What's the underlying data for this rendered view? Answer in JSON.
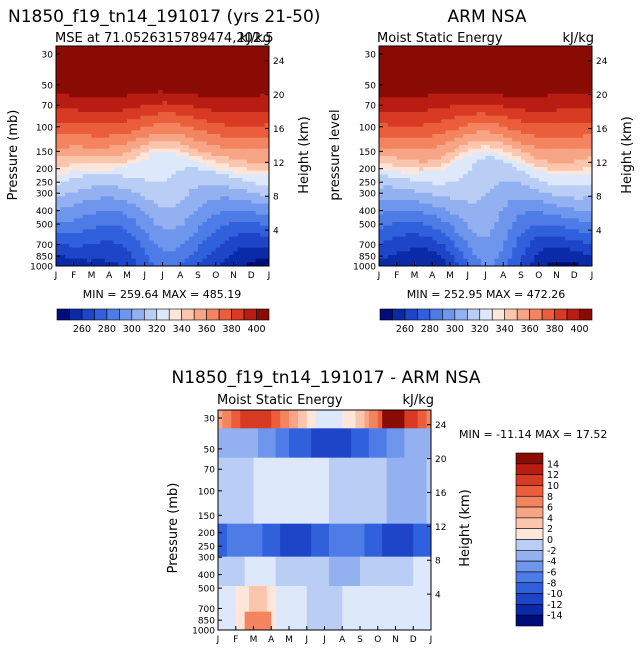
{
  "palette": [
    "#000c7a",
    "#0a2aa8",
    "#1e44c8",
    "#3060dc",
    "#4d7ce6",
    "#6e96ec",
    "#93b0f0",
    "#b9cdf5",
    "#dde8fa",
    "#ffe6da",
    "#fcc5ad",
    "#f8a585",
    "#f3845f",
    "#ea5e3c",
    "#d83a24",
    "#b81c12",
    "#8a0a04"
  ],
  "chart_data": [
    {
      "id": "top-left",
      "type": "heatmap",
      "title": "N1850_f19_tn14_191017 (yrs 21-50)",
      "subtitle_left": "MSE at 71.0526315789474,202.5",
      "subtitle_right": "kJ/kg",
      "ylabel": "Pressure (mb)",
      "ylabel_right": "Height (km)",
      "months": [
        "J",
        "F",
        "M",
        "A",
        "M",
        "J",
        "J",
        "A",
        "S",
        "O",
        "N",
        "D",
        "J"
      ],
      "pressure_ticks": [
        30,
        50,
        70,
        100,
        150,
        200,
        250,
        300,
        400,
        500,
        700,
        850,
        1000
      ],
      "height_ticks": [
        4,
        8,
        12,
        16,
        20,
        24
      ],
      "stats": "MIN = 259.64  MAX = 485.19",
      "min": 259.64,
      "max": 485.19
    },
    {
      "id": "top-right",
      "type": "heatmap",
      "title": "ARM NSA",
      "subtitle_left": "Moist Static Energy",
      "subtitle_right": "kJ/kg",
      "ylabel": "pressure level",
      "ylabel_right": "Height (km)",
      "months": [
        "J",
        "F",
        "M",
        "A",
        "M",
        "J",
        "J",
        "A",
        "S",
        "O",
        "N",
        "D",
        "J"
      ],
      "pressure_ticks": [
        30,
        50,
        70,
        100,
        150,
        200,
        250,
        300,
        400,
        500,
        700,
        850,
        1000
      ],
      "height_ticks": [
        4,
        8,
        12,
        16,
        20,
        24
      ],
      "stats": "MIN = 252.95  MAX = 472.26",
      "min": 252.95,
      "max": 472.26
    },
    {
      "id": "bottom-diff",
      "type": "heatmap",
      "title": "N1850_f19_tn14_191017 - ARM NSA",
      "subtitle_left": "Moist Static Energy",
      "subtitle_right": "kJ/kg",
      "ylabel": "Pressure (mb)",
      "ylabel_right": "Height (km)",
      "months": [
        "J",
        "F",
        "M",
        "A",
        "M",
        "J",
        "J",
        "A",
        "S",
        "O",
        "N",
        "D",
        "J"
      ],
      "pressure_ticks": [
        30,
        50,
        70,
        100,
        150,
        200,
        250,
        300,
        400,
        500,
        700,
        850,
        1000
      ],
      "height_ticks": [
        4,
        8,
        12,
        16,
        20,
        24
      ],
      "stats": "MIN = -11.14  MAX =  17.52",
      "min": -11.14,
      "max": 17.52
    }
  ],
  "colorbar_abs": {
    "labels": [
      "260",
      "280",
      "300",
      "320",
      "340",
      "360",
      "380",
      "400"
    ]
  },
  "colorbar_diff": {
    "labels": [
      "14",
      "12",
      "10",
      "8",
      "6",
      "4",
      "2",
      "0",
      "-2",
      "-4",
      "-6",
      "-8",
      "-10",
      "-12",
      "-14"
    ]
  }
}
